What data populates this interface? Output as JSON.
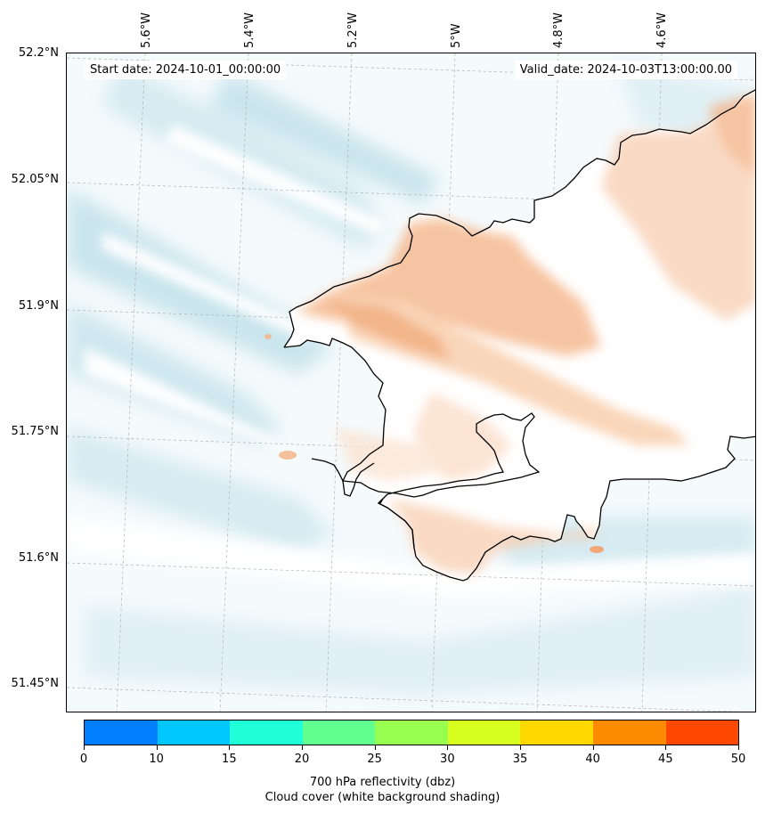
{
  "map": {
    "start_label": "Start date: 2024-10-01_00:00:00",
    "valid_label": "Valid_date: 2024-10-03T13:00:00.00",
    "lon_ticks": [
      "5.6°W",
      "5.4°W",
      "5.2°W",
      "5°W",
      "4.8°W",
      "4.6°W"
    ],
    "lat_ticks": [
      "52.2°N",
      "52.05°N",
      "51.9°N",
      "51.75°N",
      "51.6°N",
      "51.45°N"
    ],
    "colors": {
      "cloud_shading": "#a9d6e3",
      "reflectivity_low": "#f4b183",
      "coastline": "#000000",
      "grid": "#b0b0b0"
    }
  },
  "colorbar": {
    "label_line1": "700 hPa reflectivity (dbz)",
    "label_line2": "Cloud cover (white background shading)",
    "ticks": [
      "0",
      "10",
      "15",
      "20",
      "25",
      "30",
      "35",
      "40",
      "45",
      "50"
    ],
    "colors": [
      "#0080ff",
      "#00c8ff",
      "#20ffd8",
      "#60ff90",
      "#98ff50",
      "#d8ff20",
      "#ffd800",
      "#ff8c00",
      "#ff4800"
    ]
  }
}
